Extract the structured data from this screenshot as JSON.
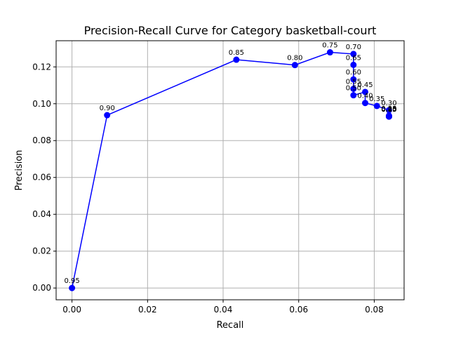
{
  "chart_data": {
    "type": "line",
    "title": "Precision-Recall Curve for Category basketball-court",
    "xlabel": "Recall",
    "ylabel": "Precision",
    "xlim": [
      -0.0042,
      0.0879
    ],
    "ylim": [
      -0.0064,
      0.1342
    ],
    "xticks": [
      0.0,
      0.02,
      0.04,
      0.06,
      0.08
    ],
    "xtick_labels": [
      "0.00",
      "0.02",
      "0.04",
      "0.06",
      "0.08"
    ],
    "yticks": [
      0.0,
      0.02,
      0.04,
      0.06,
      0.08,
      0.1,
      0.12
    ],
    "ytick_labels": [
      "0.00",
      "0.02",
      "0.04",
      "0.06",
      "0.08",
      "0.10",
      "0.12"
    ],
    "grid": true,
    "color": "#0000ff",
    "series": [
      {
        "x": [
          0.0,
          0.0093,
          0.0435,
          0.059,
          0.0683,
          0.0745,
          0.0745,
          0.0745,
          0.0745,
          0.0745,
          0.0776,
          0.0776,
          0.0807,
          0.0839,
          0.0839,
          0.0839,
          0.0839,
          0.0839,
          0.0839
        ],
        "y": [
          0.0,
          0.0938,
          0.1239,
          0.121,
          0.1279,
          0.127,
          0.1211,
          0.1132,
          0.1081,
          0.1046,
          0.1064,
          0.1004,
          0.0988,
          0.0965,
          0.0935,
          0.0932,
          0.0931,
          0.0931,
          0.093
        ],
        "labels": [
          "0.95",
          "0.90",
          "0.85",
          "0.80",
          "0.75",
          "0.70",
          "0.65",
          "0.60",
          "0.55",
          "0.50",
          "0.45",
          "0.40",
          "0.35",
          "0.30",
          "0.25",
          "0.20",
          "0.15",
          "0.10",
          "0.05"
        ]
      }
    ]
  }
}
